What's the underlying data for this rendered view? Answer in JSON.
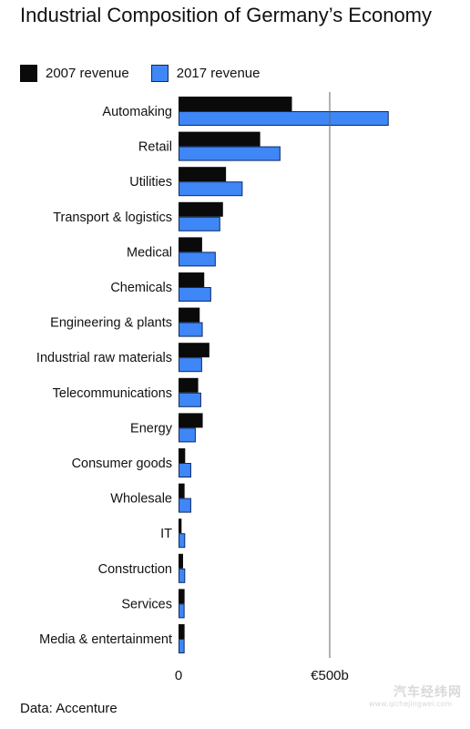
{
  "title": "Industrial Composition of Germany’s Economy",
  "legend": {
    "item_2007": "2007 revenue",
    "item_2017": "2017 revenue"
  },
  "source": "Data: Accenture",
  "watermark": {
    "text": "汽车经纬网",
    "url": "www.qichejingwei.com"
  },
  "colors": {
    "series_2007": "#0a0a0a",
    "series_2017": "#3f86f6",
    "series_2017_outline": "#0d2a66",
    "reference_line": "#666666"
  },
  "chart_data": {
    "type": "bar",
    "orientation": "horizontal",
    "title": "Industrial Composition of Germany’s Economy",
    "categories": [
      "Automaking",
      "Retail",
      "Utilities",
      "Transport & logistics",
      "Medical",
      "Chemicals",
      "Engineering & plants",
      "Industrial raw materials",
      "Telecommunications",
      "Energy",
      "Consumer goods",
      "Wholesale",
      "IT",
      "Construction",
      "Services",
      "Media & entertainment"
    ],
    "series": [
      {
        "name": "2007 revenue",
        "values": [
          375,
          270,
          157,
          147,
          78,
          85,
          70,
          102,
          65,
          80,
          22,
          20,
          10,
          15,
          20,
          20
        ]
      },
      {
        "name": "2017 revenue",
        "values": [
          695,
          337,
          212,
          138,
          123,
          108,
          80,
          78,
          75,
          57,
          42,
          42,
          22,
          22,
          20,
          20
        ]
      }
    ],
    "x_tick_labels": [
      "0",
      "€500b"
    ],
    "x_ticks": [
      0,
      500
    ],
    "xlim": [
      0,
      700
    ],
    "reference_line_at": 500,
    "grid": false,
    "legend_position": "top-left"
  }
}
